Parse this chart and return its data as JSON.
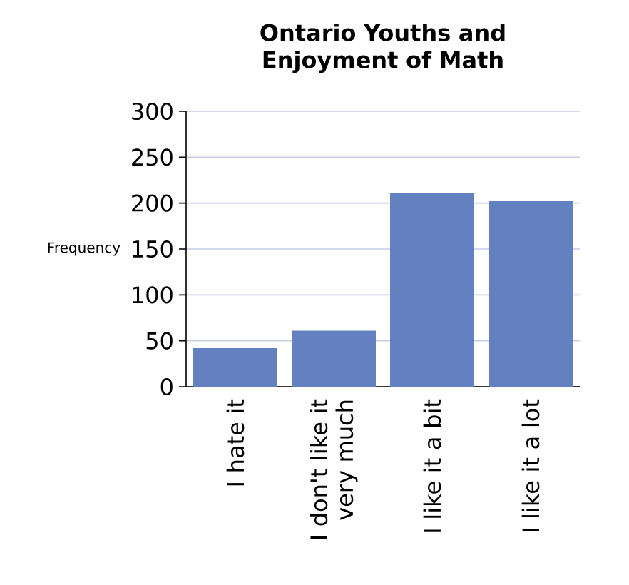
{
  "chart_data": {
    "type": "bar",
    "title": "Ontario Youths and Enjoyment of Math",
    "ylabel": "Frequency",
    "categories": [
      "I hate it",
      "I don't like it very much",
      "I like it a bit",
      "I like it a lot"
    ],
    "values": [
      42,
      61,
      211,
      202
    ],
    "color": "#6381c1",
    "ylim": [
      0,
      300
    ],
    "yticks": [
      0,
      50,
      100,
      150,
      200,
      250,
      300
    ],
    "grid": "y"
  }
}
